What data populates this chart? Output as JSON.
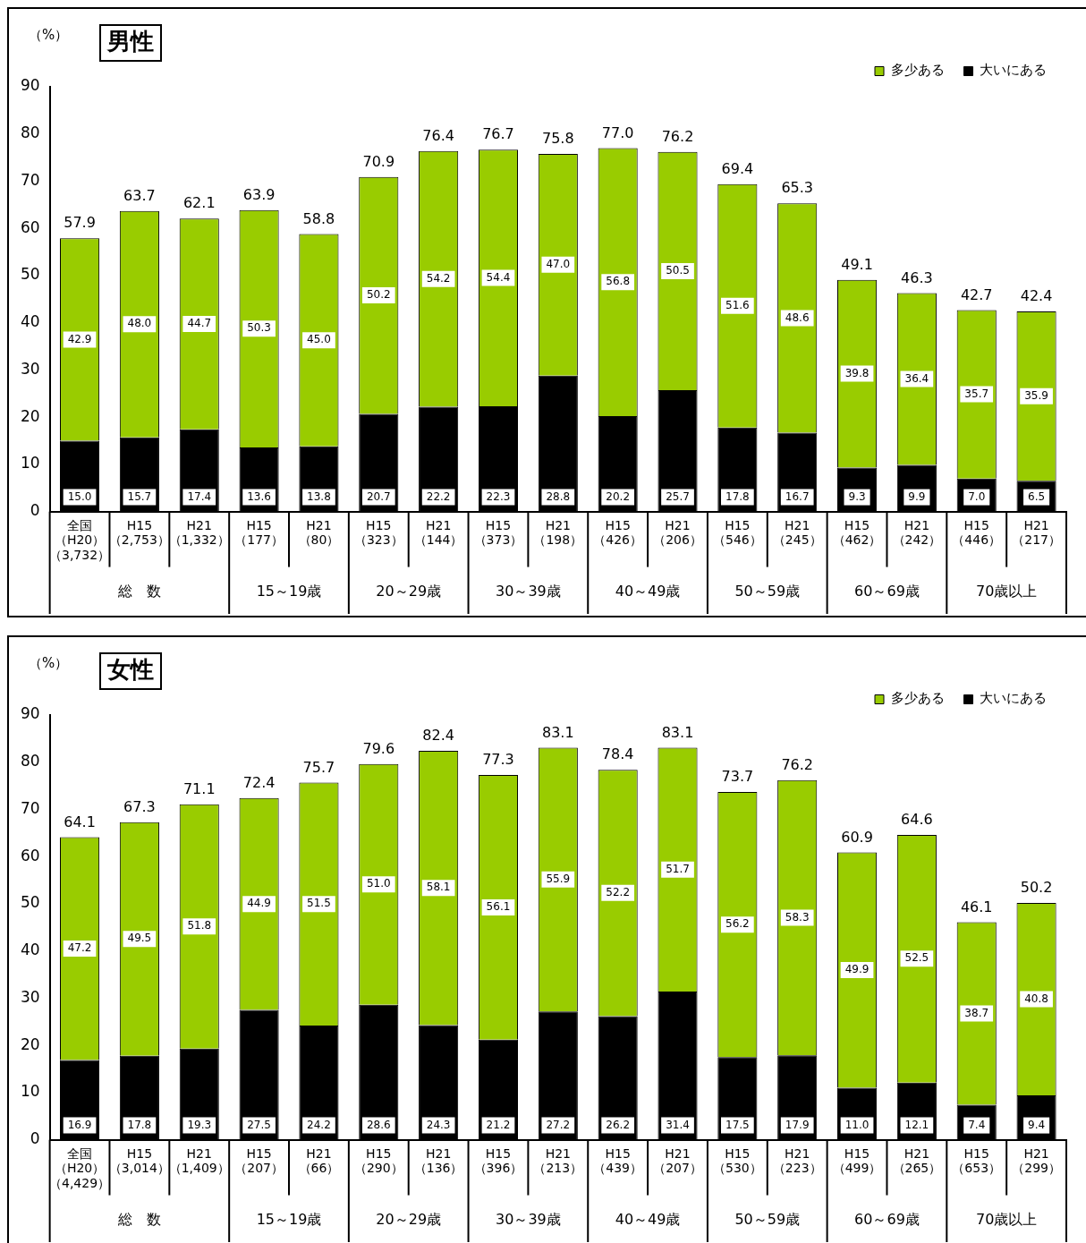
{
  "chart_data": [
    {
      "type": "bar",
      "title": "男性",
      "ylabel": "（%）",
      "stacked": true,
      "grid": false,
      "legend": "top right",
      "ylim": [
        0,
        90
      ],
      "yticks": [
        0,
        10,
        20,
        30,
        40,
        50,
        60,
        70,
        80,
        90
      ],
      "categories": [
        "全国（H20）（3,732）",
        "H15\n（2,753）",
        "H21\n（1,332）",
        "H15\n（177）",
        "H21\n（80）",
        "H15\n（323）",
        "H21\n（144）",
        "H15\n（373）",
        "H21\n（198）",
        "H15\n（426）",
        "H21\n（206）",
        "H15\n（546）",
        "H21\n（245）",
        "H15\n（462）",
        "H21\n（242）",
        "H15\n（446）",
        "H21\n（217）"
      ],
      "series": [
        {
          "name": "大いにある",
          "color": "#000000",
          "values": [
            15.0,
            15.7,
            17.4,
            13.6,
            13.8,
            20.7,
            22.2,
            22.3,
            28.8,
            20.2,
            25.7,
            17.8,
            16.7,
            9.3,
            9.9,
            7.0,
            6.5
          ],
          "value_labels": [
            "15.0",
            "15.7",
            "17.4",
            "13.6",
            "13.8",
            "20.7",
            "22.2",
            "22.3",
            "28.8",
            "20.2",
            "25.7",
            "17.8",
            "16.7",
            "9.3",
            "9.9",
            "7.0",
            "6.5"
          ]
        },
        {
          "name": "多少ある",
          "color": "#99cc00",
          "values": [
            42.9,
            48.0,
            44.7,
            50.3,
            45.0,
            50.2,
            54.2,
            54.4,
            47.0,
            56.8,
            50.5,
            51.6,
            48.6,
            39.8,
            36.4,
            35.7,
            35.9
          ],
          "value_labels": [
            "42.9",
            "48.0",
            "44.7",
            "50.3",
            "45.0",
            "50.2",
            "54.2",
            "54.4",
            "47.0",
            "56.8",
            "50.5",
            "51.6",
            "48.6",
            "39.8",
            "36.4",
            "35.7",
            "35.9"
          ]
        }
      ],
      "totals": [
        "57.9",
        "63.7",
        "62.1",
        "63.9",
        "58.8",
        "70.9",
        "76.4",
        "76.7",
        "75.8",
        "77.0",
        "76.2",
        "69.4",
        "65.3",
        "49.1",
        "46.3",
        "42.7",
        "42.4"
      ],
      "annotations": [
        "総　数",
        "15～19歳",
        "20～29歳",
        "30～39歳",
        "40～49歳",
        "50～59歳",
        "60～69歳",
        "70歳以上"
      ]
    },
    {
      "type": "bar",
      "title": "女性",
      "ylabel": "（%）",
      "stacked": true,
      "grid": false,
      "legend": "top right",
      "ylim": [
        0,
        90
      ],
      "yticks": [
        0,
        10,
        20,
        30,
        40,
        50,
        60,
        70,
        80,
        90
      ],
      "categories": [
        "全国（H20）（4,429）",
        "H15\n（3,014）",
        "H21\n（1,409）",
        "H15\n（207）",
        "H21\n（66）",
        "H15\n（290）",
        "H21\n（136）",
        "H15\n（396）",
        "H21\n（213）",
        "H15\n（439）",
        "H21\n（207）",
        "H15\n（530）",
        "H21\n（223）",
        "H15\n（499）",
        "H21\n（265）",
        "H15\n（653）",
        "H21\n（299）"
      ],
      "series": [
        {
          "name": "大いにある",
          "color": "#000000",
          "values": [
            16.9,
            17.8,
            19.3,
            27.5,
            24.2,
            28.6,
            24.3,
            21.2,
            27.2,
            26.2,
            31.4,
            17.5,
            17.9,
            11.0,
            12.1,
            7.4,
            9.4
          ],
          "value_labels": [
            "16.9",
            "17.8",
            "19.3",
            "27.5",
            "24.2",
            "28.6",
            "24.3",
            "21.2",
            "27.2",
            "26.2",
            "31.4",
            "17.5",
            "17.9",
            "11.0",
            "12.1",
            "7.4",
            "9.4"
          ]
        },
        {
          "name": "多少ある",
          "color": "#99cc00",
          "values": [
            47.2,
            49.5,
            51.8,
            44.9,
            51.5,
            51.0,
            58.1,
            56.1,
            55.9,
            52.2,
            51.7,
            56.2,
            58.3,
            49.9,
            52.5,
            38.7,
            40.8
          ],
          "value_labels": [
            "47.2",
            "49.5",
            "51.8",
            "44.9",
            "51.5",
            "51.0",
            "58.1",
            "56.1",
            "55.9",
            "52.2",
            "51.7",
            "56.2",
            "58.3",
            "49.9",
            "52.5",
            "38.7",
            "40.8"
          ]
        }
      ],
      "totals": [
        "64.1",
        "67.3",
        "71.1",
        "72.4",
        "75.7",
        "79.6",
        "82.4",
        "77.3",
        "83.1",
        "78.4",
        "83.1",
        "73.7",
        "76.2",
        "60.9",
        "64.6",
        "46.1",
        "50.2"
      ],
      "annotations": [
        "総　数",
        "15～19歳",
        "20～29歳",
        "30～39歳",
        "40～49歳",
        "50～59歳",
        "60～69歳",
        "70歳以上"
      ]
    }
  ]
}
